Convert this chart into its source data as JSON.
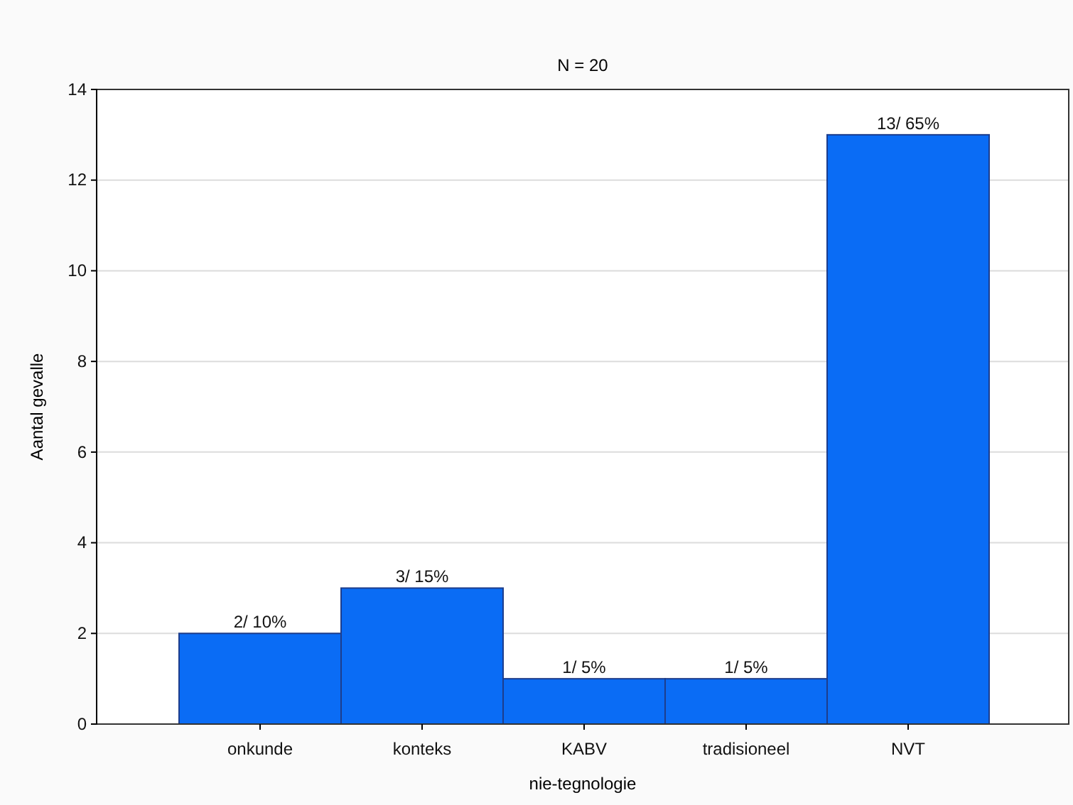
{
  "chart_data": {
    "type": "bar",
    "title": "N = 20",
    "xlabel": "nie-tegnologie",
    "ylabel": "Aantal gevalle",
    "categories": [
      "onkunde",
      "konteks",
      "KABV",
      "tradisioneel",
      "NVT"
    ],
    "values": [
      2,
      3,
      1,
      1,
      13
    ],
    "value_labels": [
      "2/ 10%",
      "3/ 15%",
      "1/ 5%",
      "1/ 5%",
      "13/ 65%"
    ],
    "color": "#0a6cf5",
    "ylim": [
      0,
      14
    ],
    "yticks": [
      0,
      2,
      4,
      6,
      8,
      10,
      12,
      14
    ],
    "grid": "y"
  }
}
